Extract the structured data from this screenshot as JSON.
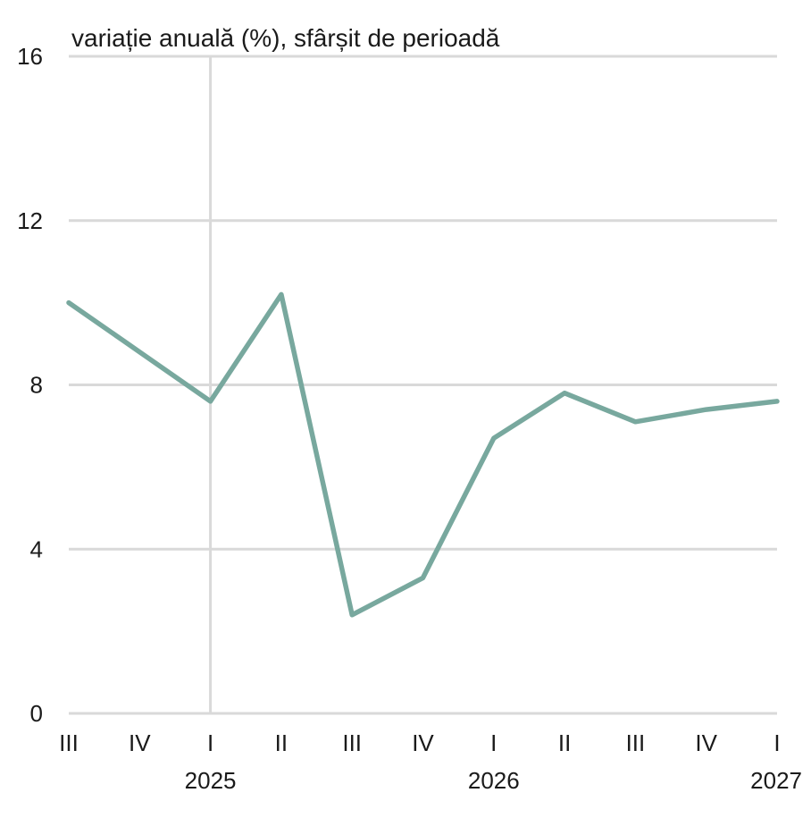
{
  "chart_data": {
    "type": "line",
    "title": "",
    "unit_label": "variație anuală (%), sfârșit de perioadă",
    "xlabel": "",
    "ylabel": "",
    "categories": [
      "III",
      "IV",
      "I",
      "II",
      "III",
      "IV",
      "I",
      "II",
      "III",
      "IV",
      "I"
    ],
    "year_labels": [
      {
        "index": 2,
        "label": "2025"
      },
      {
        "index": 6,
        "label": "2026"
      },
      {
        "index": 10,
        "label": "2027"
      }
    ],
    "year_separators": [
      2
    ],
    "series": [
      {
        "values": [
          10.0,
          8.8,
          7.6,
          10.2,
          2.4,
          3.3,
          6.7,
          7.8,
          7.1,
          7.4,
          7.6
        ],
        "color": "#78a89e"
      }
    ],
    "yticks": [
      0,
      4,
      8,
      12,
      16
    ],
    "ylim": [
      0,
      16
    ],
    "grid": true,
    "legend": "none",
    "colors": {
      "grid": "#d9d9d9",
      "line": "#78a89e",
      "text": "#1a1a1a"
    }
  }
}
